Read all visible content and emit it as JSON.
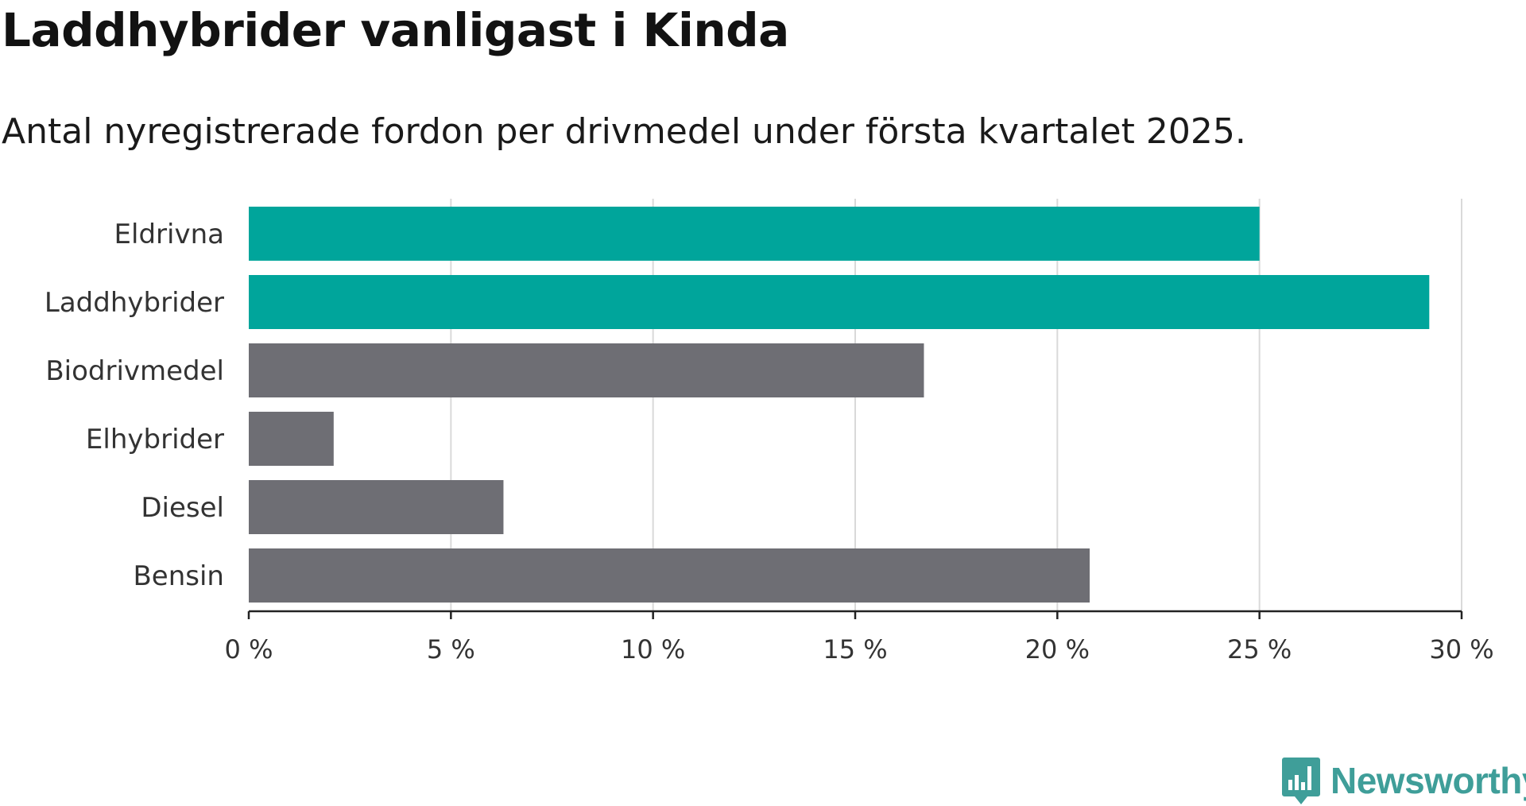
{
  "header": {
    "title": "Laddhybrider vanligast i Kinda",
    "subtitle": "Antal nyregistrerade fordon per drivmedel under första kvartalet 2025."
  },
  "brand": {
    "name": "Newsworthy",
    "logo_icon": "newsworthy-bar-chart-icon",
    "color": "#3f9e99"
  },
  "colors": {
    "highlight": "#00a59b",
    "default": "#6e6e74",
    "grid": "#d9d9d9",
    "axis": "#222222"
  },
  "chart_data": {
    "type": "bar",
    "orientation": "horizontal",
    "categories": [
      "Eldrivna",
      "Laddhybrider",
      "Biodrivmedel",
      "Elhybrider",
      "Diesel",
      "Bensin"
    ],
    "values": [
      25.0,
      29.2,
      16.7,
      2.1,
      6.3,
      20.8
    ],
    "highlighted": [
      true,
      true,
      false,
      false,
      false,
      false
    ],
    "xlim": [
      0,
      30
    ],
    "xticks": [
      0,
      5,
      10,
      15,
      20,
      25,
      30
    ],
    "xtick_labels": [
      "0 %",
      "5 %",
      "10 %",
      "15 %",
      "20 %",
      "25 %",
      "30 %"
    ],
    "grid": true
  }
}
